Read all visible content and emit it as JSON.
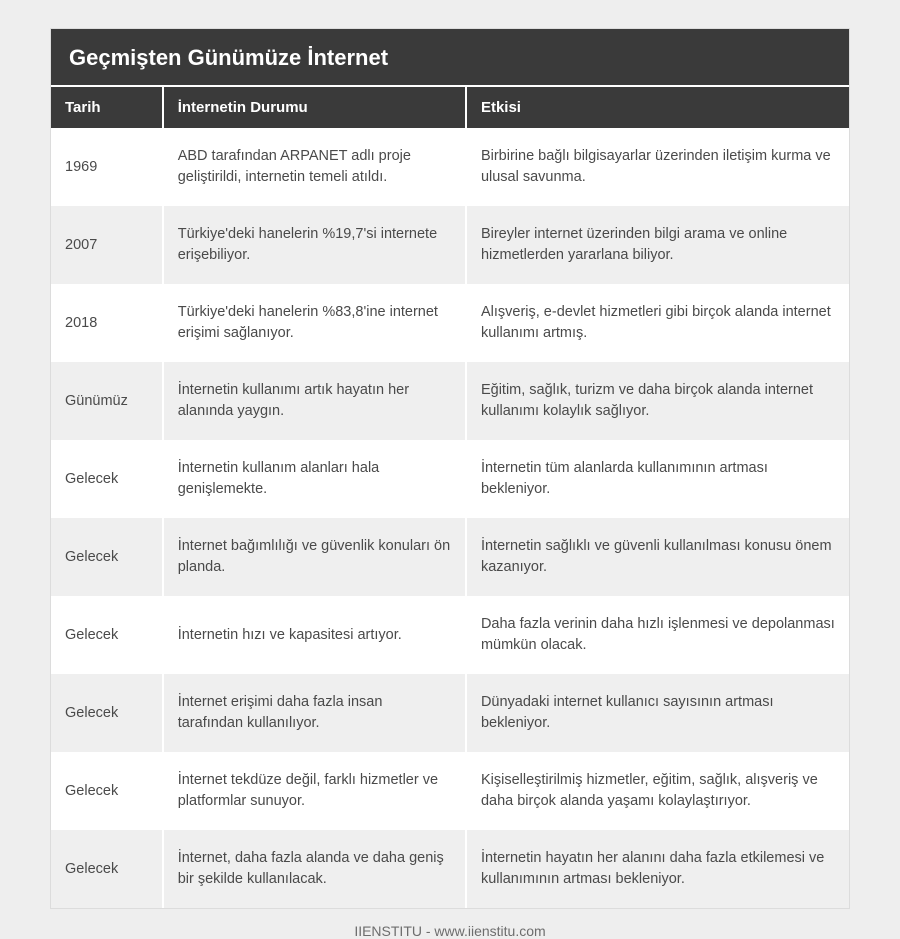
{
  "table": {
    "title": "Geçmişten Günümüze İnternet",
    "columns": [
      "Tarih",
      "İnternetin Durumu",
      "Etkisi"
    ],
    "column_widths_pct": [
      14,
      38,
      48
    ],
    "title_bg": "#3a3a3a",
    "title_color": "#ffffff",
    "title_fontsize": 22,
    "header_bg": "#3a3a3a",
    "header_color": "#ffffff",
    "header_fontsize": 15,
    "row_bg_odd": "#ffffff",
    "row_bg_even": "#efefef",
    "cell_color": "#4a4a4a",
    "cell_fontsize": 14.5,
    "cell_gap_color": "#ffffff",
    "card_border_color": "#dcdcdc",
    "page_bg": "#eeeeee",
    "rows": [
      [
        "1969",
        "ABD tarafından ARPANET adlı proje geliştirildi, internetin temeli atıldı.",
        "Birbirine bağlı bilgisayarlar üzerinden iletişim kurma ve ulusal savunma."
      ],
      [
        "2007",
        "Türkiye'deki hanelerin %19,7'si internete erişebiliyor.",
        "Bireyler internet üzerinden bilgi arama ve online hizmetlerden yararlana biliyor."
      ],
      [
        "2018",
        "Türkiye'deki hanelerin %83,8'ine internet erişimi sağlanıyor.",
        "Alışveriş, e-devlet hizmetleri gibi birçok alanda internet kullanımı artmış."
      ],
      [
        "Günümüz",
        "İnternetin kullanımı artık hayatın her alanında yaygın.",
        "Eğitim, sağlık, turizm ve daha birçok alanda internet kullanımı kolaylık sağlıyor."
      ],
      [
        "Gelecek",
        "İnternetin kullanım alanları hala genişlemekte.",
        "İnternetin tüm alanlarda kullanımının artması bekleniyor."
      ],
      [
        "Gelecek",
        "İnternet bağımlılığı ve güvenlik konuları ön planda.",
        "İnternetin sağlıklı ve güvenli kullanılması konusu önem kazanıyor."
      ],
      [
        "Gelecek",
        "İnternetin hızı ve kapasitesi artıyor.",
        "Daha fazla verinin daha hızlı işlenmesi ve depolanması mümkün olacak."
      ],
      [
        "Gelecek",
        "İnternet erişimi daha fazla insan tarafından kullanılıyor.",
        "Dünyadaki internet kullanıcı sayısının artması bekleniyor."
      ],
      [
        "Gelecek",
        "İnternet tekdüze değil, farklı hizmetler ve platformlar sunuyor.",
        "Kişiselleştirilmiş hizmetler, eğitim, sağlık, alışveriş ve daha birçok alanda yaşamı kolaylaştırıyor."
      ],
      [
        "Gelecek",
        "İnternet, daha fazla alanda ve daha geniş bir şekilde kullanılacak.",
        "İnternetin hayatın her alanını daha fazla etkilemesi ve kullanımının artması bekleniyor."
      ]
    ]
  },
  "footer": {
    "text": "IIENSTITU - www.iienstitu.com",
    "color": "#6d6d6d",
    "fontsize": 14
  }
}
